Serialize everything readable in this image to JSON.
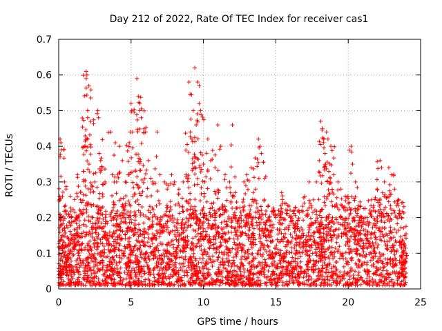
{
  "chart_data": {
    "type": "scatter",
    "title": "Day 212 of 2022, Rate Of TEC Index for receiver cas1",
    "xlabel": "GPS time / hours",
    "ylabel": "ROTI / TECUs",
    "xlim": [
      0,
      25
    ],
    "ylim": [
      0,
      0.7
    ],
    "x_ticks": [
      "0",
      "5",
      "10",
      "15",
      "20",
      "25"
    ],
    "y_ticks": [
      "0",
      "0.1",
      "0.2",
      "0.3",
      "0.4",
      "0.5",
      "0.6",
      "0.7"
    ],
    "grid": true,
    "marker": "+",
    "color": "#ff0000",
    "series": [
      {
        "name": "ROTI",
        "points": [
          [
            0.0,
            0.05
          ],
          [
            0.05,
            0.25
          ],
          [
            0.1,
            0.42
          ],
          [
            0.1,
            0.37
          ],
          [
            0.15,
            0.41
          ],
          [
            0.2,
            0.18
          ],
          [
            0.3,
            0.12
          ],
          [
            0.4,
            0.3
          ],
          [
            0.5,
            0.22
          ],
          [
            0.6,
            0.08
          ],
          [
            0.8,
            0.26
          ],
          [
            1.0,
            0.15
          ],
          [
            1.2,
            0.2
          ],
          [
            1.3,
            0.32
          ],
          [
            1.5,
            0.25
          ],
          [
            1.7,
            0.33
          ],
          [
            1.8,
            0.4
          ],
          [
            1.9,
            0.61
          ],
          [
            1.95,
            0.6
          ],
          [
            1.9,
            0.59
          ],
          [
            2.0,
            0.5
          ],
          [
            2.0,
            0.48
          ],
          [
            2.0,
            0.42
          ],
          [
            2.1,
            0.35
          ],
          [
            2.2,
            0.28
          ],
          [
            2.5,
            0.3
          ],
          [
            2.7,
            0.5
          ],
          [
            2.75,
            0.48
          ],
          [
            2.8,
            0.38
          ],
          [
            2.9,
            0.36
          ],
          [
            3.0,
            0.34
          ],
          [
            3.2,
            0.3
          ],
          [
            3.6,
            0.44
          ],
          [
            3.7,
            0.32
          ],
          [
            4.0,
            0.3
          ],
          [
            4.2,
            0.4
          ],
          [
            4.4,
            0.36
          ],
          [
            4.6,
            0.3
          ],
          [
            4.8,
            0.32
          ],
          [
            5.0,
            0.52
          ],
          [
            5.05,
            0.5
          ],
          [
            5.1,
            0.44
          ],
          [
            5.3,
            0.33
          ],
          [
            5.4,
            0.59
          ],
          [
            5.5,
            0.54
          ],
          [
            5.6,
            0.52
          ],
          [
            5.6,
            0.5
          ],
          [
            5.7,
            0.48
          ],
          [
            6.0,
            0.44
          ],
          [
            6.2,
            0.36
          ],
          [
            6.5,
            0.3
          ],
          [
            6.8,
            0.44
          ],
          [
            7.0,
            0.32
          ],
          [
            7.3,
            0.3
          ],
          [
            7.5,
            0.28
          ],
          [
            7.8,
            0.32
          ],
          [
            8.0,
            0.3
          ],
          [
            8.3,
            0.28
          ],
          [
            8.6,
            0.3
          ],
          [
            8.8,
            0.32
          ],
          [
            9.0,
            0.58
          ],
          [
            9.1,
            0.44
          ],
          [
            9.2,
            0.42
          ],
          [
            9.3,
            0.5
          ],
          [
            9.4,
            0.62
          ],
          [
            9.5,
            0.46
          ],
          [
            9.6,
            0.58
          ],
          [
            9.7,
            0.52
          ],
          [
            9.8,
            0.5
          ],
          [
            10.0,
            0.35
          ],
          [
            10.3,
            0.42
          ],
          [
            10.5,
            0.36
          ],
          [
            10.8,
            0.34
          ],
          [
            11.0,
            0.46
          ],
          [
            11.2,
            0.4
          ],
          [
            11.5,
            0.32
          ],
          [
            11.8,
            0.3
          ],
          [
            12.0,
            0.46
          ],
          [
            12.2,
            0.27
          ],
          [
            12.5,
            0.2
          ],
          [
            12.8,
            0.3
          ],
          [
            13.0,
            0.32
          ],
          [
            13.3,
            0.34
          ],
          [
            13.6,
            0.28
          ],
          [
            13.8,
            0.42
          ],
          [
            13.9,
            0.4
          ],
          [
            14.0,
            0.38
          ],
          [
            14.2,
            0.25
          ],
          [
            14.5,
            0.2
          ],
          [
            14.8,
            0.18
          ],
          [
            15.0,
            0.2
          ],
          [
            15.2,
            0.22
          ],
          [
            15.4,
            0.27
          ],
          [
            15.6,
            0.24
          ],
          [
            15.8,
            0.22
          ],
          [
            16.0,
            0.2
          ],
          [
            16.3,
            0.16
          ],
          [
            16.6,
            0.22
          ],
          [
            17.0,
            0.26
          ],
          [
            17.3,
            0.3
          ],
          [
            17.6,
            0.25
          ],
          [
            17.8,
            0.3
          ],
          [
            18.0,
            0.36
          ],
          [
            18.1,
            0.47
          ],
          [
            18.2,
            0.45
          ],
          [
            18.3,
            0.42
          ],
          [
            18.4,
            0.38
          ],
          [
            18.5,
            0.44
          ],
          [
            18.6,
            0.42
          ],
          [
            18.8,
            0.4
          ],
          [
            19.0,
            0.32
          ],
          [
            19.3,
            0.3
          ],
          [
            19.5,
            0.28
          ],
          [
            19.8,
            0.26
          ],
          [
            20.0,
            0.24
          ],
          [
            20.2,
            0.4
          ],
          [
            20.3,
            0.35
          ],
          [
            20.5,
            0.3
          ],
          [
            20.8,
            0.2
          ],
          [
            21.0,
            0.18
          ],
          [
            21.3,
            0.2
          ],
          [
            21.6,
            0.25
          ],
          [
            22.0,
            0.28
          ],
          [
            22.2,
            0.36
          ],
          [
            22.3,
            0.34
          ],
          [
            22.5,
            0.3
          ],
          [
            22.8,
            0.34
          ],
          [
            23.0,
            0.32
          ],
          [
            23.2,
            0.28
          ],
          [
            23.5,
            0.25
          ],
          [
            23.7,
            0.2
          ],
          [
            23.9,
            0.15
          ],
          [
            24.0,
            0.1
          ]
        ],
        "baseline_band": {
          "x_range": [
            0,
            24
          ],
          "y_range": [
            0.01,
            0.15
          ],
          "note": "dense cluster of points filling the lower region across the full day"
        }
      }
    ]
  }
}
